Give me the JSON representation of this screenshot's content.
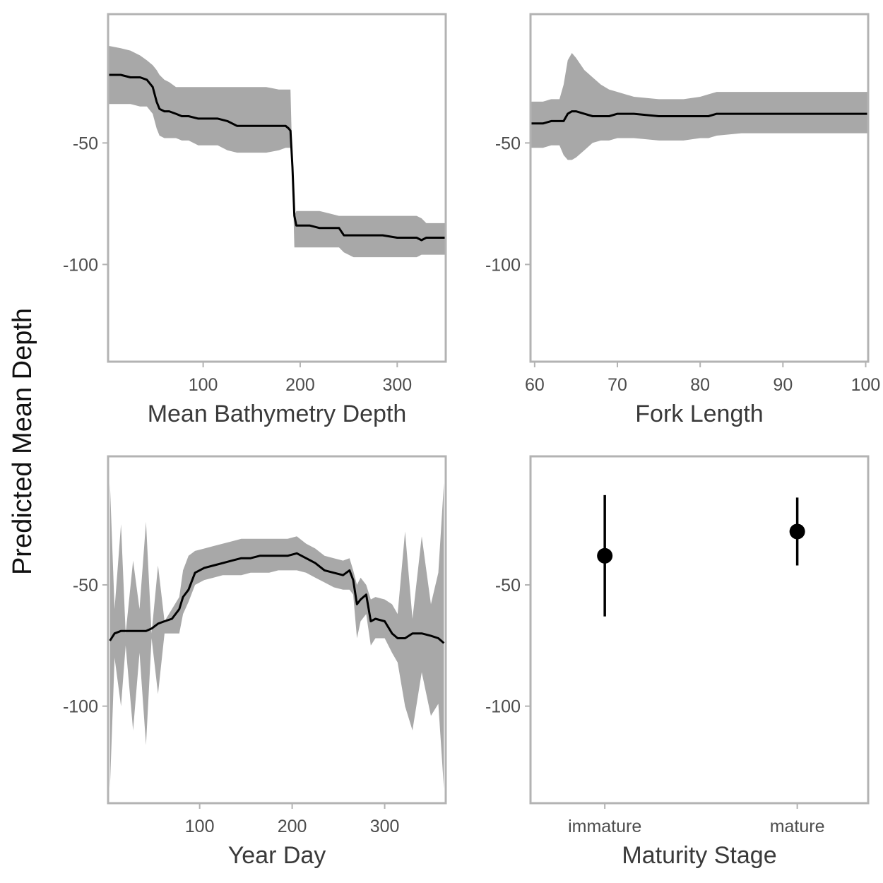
{
  "figure": {
    "ylabel": "Predicted Mean Depth",
    "colors": {
      "band": "#a8a8a8",
      "line": "#000000",
      "frame": "#b3b3b3",
      "text": "#4d4d4d"
    }
  },
  "chart_data": [
    {
      "type": "line",
      "xlabel": "Mean Bathymetry Depth",
      "xlim": [
        2,
        350
      ],
      "ylim": [
        -140,
        3
      ],
      "xticks": [
        100,
        200,
        300
      ],
      "xtick_labels": [
        "100",
        "200",
        "300"
      ],
      "yticks": [
        -50,
        -100
      ],
      "ytick_labels": [
        "-50",
        "-100"
      ],
      "x": [
        2,
        15,
        25,
        35,
        42,
        48,
        52,
        55,
        60,
        65,
        72,
        78,
        85,
        95,
        105,
        115,
        125,
        135,
        150,
        165,
        178,
        185,
        188,
        190,
        192,
        194,
        196,
        200,
        210,
        220,
        230,
        240,
        245,
        255,
        270,
        285,
        300,
        310,
        320,
        325,
        330,
        340,
        350
      ],
      "mean": [
        -22,
        -22,
        -23,
        -23,
        -24,
        -27,
        -33,
        -36,
        -37,
        -37,
        -38,
        -39,
        -39,
        -40,
        -40,
        -40,
        -41,
        -43,
        -43,
        -43,
        -43,
        -43,
        -44,
        -45,
        -60,
        -80,
        -84,
        -84,
        -84,
        -85,
        -85,
        -85,
        -88,
        -88,
        -88,
        -88,
        -89,
        -89,
        -89,
        -90,
        -89,
        -89,
        -89
      ],
      "upper": [
        -10,
        -11,
        -12,
        -14,
        -16,
        -18,
        -20,
        -22,
        -24,
        -25,
        -27,
        -27,
        -27,
        -27,
        -27,
        -27,
        -27,
        -27,
        -27,
        -27,
        -28,
        -28,
        -28,
        -28,
        -60,
        -80,
        -78,
        -78,
        -78,
        -78,
        -79,
        -80,
        -80,
        -80,
        -80,
        -80,
        -80,
        -80,
        -80,
        -81,
        -83,
        -83,
        -83
      ],
      "lower": [
        -34,
        -34,
        -34,
        -35,
        -35,
        -38,
        -44,
        -47,
        -48,
        -48,
        -48,
        -49,
        -49,
        -51,
        -51,
        -51,
        -53,
        -54,
        -54,
        -54,
        -53,
        -52,
        -52,
        -52,
        -62,
        -93,
        -93,
        -93,
        -93,
        -93,
        -93,
        -93,
        -95,
        -97,
        -97,
        -97,
        -97,
        -97,
        -97,
        -96,
        -96,
        -96,
        -96
      ]
    },
    {
      "type": "line",
      "xlabel": "Fork Length",
      "xlim": [
        59.5,
        100.3
      ],
      "ylim": [
        -140,
        3
      ],
      "xticks": [
        60,
        70,
        80,
        90,
        100
      ],
      "xtick_labels": [
        "60",
        "70",
        "80",
        "90",
        "100"
      ],
      "yticks": [
        -50,
        -100
      ],
      "ytick_labels": [
        "-50",
        "-100"
      ],
      "x": [
        59.5,
        61,
        62,
        63,
        63.5,
        64,
        64.5,
        65,
        66,
        67,
        68,
        69,
        70,
        72,
        75,
        78,
        80,
        81,
        82,
        85,
        90,
        95,
        100.3
      ],
      "mean": [
        -42,
        -42,
        -41,
        -41,
        -41,
        -38,
        -37,
        -37,
        -38,
        -39,
        -39,
        -39,
        -38,
        -38,
        -39,
        -39,
        -39,
        -39,
        -38,
        -38,
        -38,
        -38,
        -38
      ],
      "upper": [
        -33,
        -33,
        -32,
        -32,
        -26,
        -16,
        -13,
        -15,
        -20,
        -23,
        -26,
        -28,
        -29,
        -31,
        -32,
        -32,
        -31,
        -30,
        -29,
        -29,
        -29,
        -29,
        -29
      ],
      "lower": [
        -52,
        -52,
        -51,
        -51,
        -55,
        -57,
        -57,
        -56,
        -53,
        -50,
        -49,
        -49,
        -48,
        -48,
        -49,
        -49,
        -48,
        -48,
        -47,
        -46,
        -46,
        -46,
        -46
      ]
    },
    {
      "type": "line",
      "xlabel": "Year Day",
      "xlim": [
        1,
        366
      ],
      "ylim": [
        -140,
        3
      ],
      "xticks": [
        100,
        200,
        300
      ],
      "xtick_labels": [
        "100",
        "200",
        "300"
      ],
      "yticks": [
        -50,
        -100
      ],
      "ytick_labels": [
        "-50",
        "-100"
      ],
      "x": [
        3,
        8,
        15,
        20,
        28,
        35,
        42,
        48,
        55,
        62,
        70,
        78,
        82,
        88,
        95,
        105,
        115,
        125,
        135,
        145,
        155,
        165,
        175,
        185,
        195,
        205,
        215,
        225,
        235,
        245,
        255,
        262,
        266,
        270,
        274,
        280,
        285,
        290,
        300,
        308,
        314,
        322,
        330,
        340,
        350,
        358,
        364
      ],
      "mean": [
        -73,
        -70,
        -69,
        -69,
        -69,
        -69,
        -69,
        -68,
        -66,
        -65,
        -64,
        -60,
        -55,
        -52,
        -45,
        -43,
        -42,
        -41,
        -40,
        -39,
        -39,
        -38,
        -38,
        -38,
        -38,
        -37,
        -39,
        -41,
        -44,
        -45,
        -46,
        -44,
        -48,
        -58,
        -56,
        -54,
        -65,
        -64,
        -65,
        -70,
        -72,
        -72,
        -70,
        -70,
        -71,
        -72,
        -74
      ],
      "upper": [
        -8,
        -60,
        -25,
        -70,
        -40,
        -60,
        -24,
        -70,
        -42,
        -65,
        -60,
        -55,
        -44,
        -38,
        -36,
        -35,
        -34,
        -33,
        -32,
        -31,
        -31,
        -31,
        -31,
        -31,
        -31,
        -30,
        -33,
        -35,
        -38,
        -39,
        -40,
        -39,
        -44,
        -50,
        -47,
        -50,
        -56,
        -55,
        -56,
        -58,
        -62,
        -28,
        -64,
        -30,
        -58,
        -45,
        -8
      ],
      "lower": [
        -134,
        -80,
        -100,
        -75,
        -110,
        -78,
        -116,
        -72,
        -95,
        -70,
        -70,
        -70,
        -62,
        -57,
        -50,
        -48,
        -47,
        -46,
        -46,
        -46,
        -45,
        -45,
        -45,
        -44,
        -44,
        -44,
        -45,
        -47,
        -49,
        -51,
        -52,
        -52,
        -54,
        -72,
        -65,
        -62,
        -75,
        -72,
        -72,
        -78,
        -82,
        -100,
        -110,
        -86,
        -104,
        -99,
        -134
      ]
    },
    {
      "type": "scatter",
      "xlabel": "Maturity Stage",
      "categories": [
        "immature",
        "mature"
      ],
      "ylim": [
        -140,
        3
      ],
      "yticks": [
        -50,
        -100
      ],
      "ytick_labels": [
        "-50",
        "-100"
      ],
      "values": [
        -38,
        -28
      ],
      "upper": [
        -13,
        -14
      ],
      "lower": [
        -63,
        -42
      ]
    }
  ]
}
